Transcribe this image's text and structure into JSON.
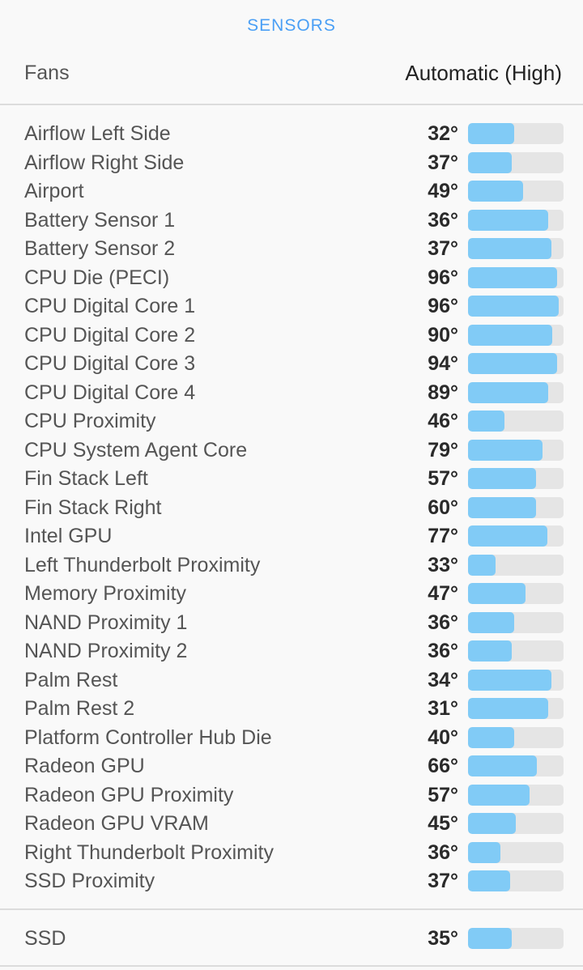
{
  "header": {
    "title": "SENSORS"
  },
  "fans": {
    "label": "Fans",
    "value": "Automatic (High)"
  },
  "sensors": [
    {
      "name": "Airflow Left Side",
      "temp": "32°",
      "level": 0.48
    },
    {
      "name": "Airflow Right Side",
      "temp": "37°",
      "level": 0.46
    },
    {
      "name": "Airport",
      "temp": "49°",
      "level": 0.58
    },
    {
      "name": "Battery Sensor 1",
      "temp": "36°",
      "level": 0.84
    },
    {
      "name": "Battery Sensor 2",
      "temp": "37°",
      "level": 0.87
    },
    {
      "name": "CPU Die (PECI)",
      "temp": "96°",
      "level": 0.93
    },
    {
      "name": "CPU Digital Core 1",
      "temp": "96°",
      "level": 0.95
    },
    {
      "name": "CPU Digital Core 2",
      "temp": "90°",
      "level": 0.88
    },
    {
      "name": "CPU Digital Core 3",
      "temp": "94°",
      "level": 0.93
    },
    {
      "name": "CPU Digital Core 4",
      "temp": "89°",
      "level": 0.84
    },
    {
      "name": "CPU Proximity",
      "temp": "46°",
      "level": 0.38
    },
    {
      "name": "CPU System Agent Core",
      "temp": "79°",
      "level": 0.78
    },
    {
      "name": "Fin Stack Left",
      "temp": "57°",
      "level": 0.71
    },
    {
      "name": "Fin Stack Right",
      "temp": "60°",
      "level": 0.71
    },
    {
      "name": "Intel GPU",
      "temp": "77°",
      "level": 0.83
    },
    {
      "name": "Left Thunderbolt Proximity",
      "temp": "33°",
      "level": 0.29
    },
    {
      "name": "Memory Proximity",
      "temp": "47°",
      "level": 0.6
    },
    {
      "name": "NAND Proximity 1",
      "temp": "36°",
      "level": 0.48
    },
    {
      "name": "NAND Proximity 2",
      "temp": "36°",
      "level": 0.46
    },
    {
      "name": "Palm Rest",
      "temp": "34°",
      "level": 0.87
    },
    {
      "name": "Palm Rest 2",
      "temp": "31°",
      "level": 0.84
    },
    {
      "name": "Platform Controller Hub Die",
      "temp": "40°",
      "level": 0.48
    },
    {
      "name": "Radeon GPU",
      "temp": "66°",
      "level": 0.72
    },
    {
      "name": "Radeon GPU Proximity",
      "temp": "57°",
      "level": 0.64
    },
    {
      "name": "Radeon GPU VRAM",
      "temp": "45°",
      "level": 0.5
    },
    {
      "name": "Right Thunderbolt Proximity",
      "temp": "36°",
      "level": 0.34
    },
    {
      "name": "SSD Proximity",
      "temp": "37°",
      "level": 0.44
    }
  ],
  "ssd": {
    "name": "SSD",
    "temp": "35°",
    "level": 0.46
  },
  "colors": {
    "accent": "#4a9ff5",
    "bar_fill": "#81cbf6",
    "bar_track": "#e5e5e5"
  }
}
